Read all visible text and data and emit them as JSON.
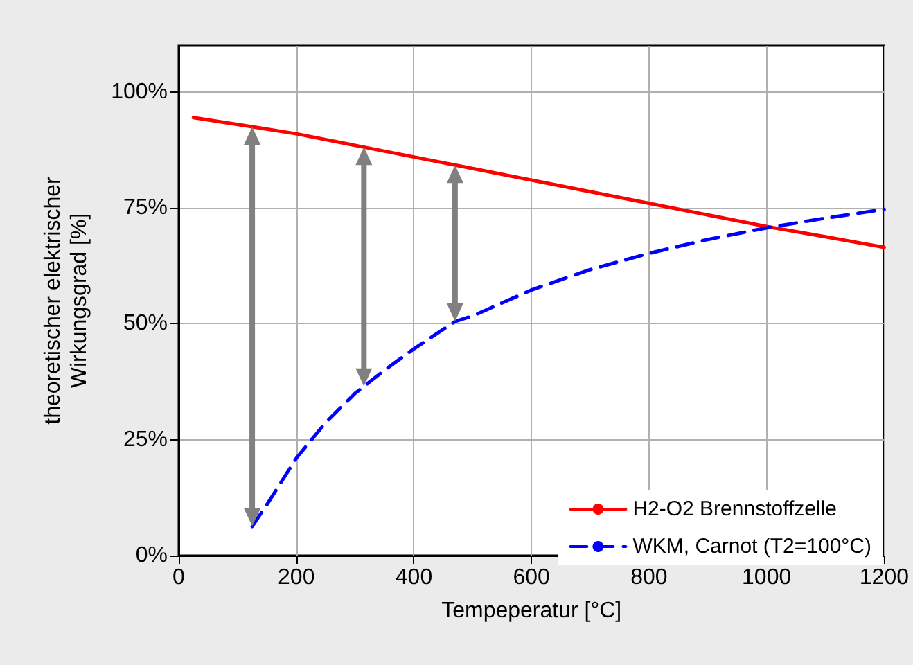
{
  "chart_data": {
    "type": "line",
    "xlabel": "Tempeperatur [°C]",
    "ylabel": "theoretischer elektrischer\nWirkungsgrad [%]",
    "xlim": [
      0,
      1200
    ],
    "xticks": [
      0,
      200,
      400,
      600,
      800,
      1000,
      1200
    ],
    "ylim": [
      0,
      110
    ],
    "yticks": [
      {
        "value": 0,
        "label": "0%"
      },
      {
        "value": 25,
        "label": "25%"
      },
      {
        "value": 50,
        "label": "50%"
      },
      {
        "value": 75,
        "label": "75%"
      },
      {
        "value": 100,
        "label": "100%"
      }
    ],
    "grid": true,
    "legend": "bottom right",
    "marker": "none",
    "series": [
      {
        "name": "H2-O2 Brennstoffzelle",
        "color": "#ff0000",
        "line_style": "solid",
        "x": [
          25,
          125,
          200,
          300,
          400,
          500,
          600,
          700,
          800,
          900,
          1000,
          1100,
          1200
        ],
        "values": [
          94.5,
          92.5,
          91,
          88.5,
          86,
          83.5,
          81,
          78.5,
          76,
          73.5,
          71,
          68.8,
          66.5
        ]
      },
      {
        "name": "WKM, Carnot (T2=100°C)",
        "color": "#0000ff",
        "line_style": "dashed",
        "x": [
          125,
          150,
          200,
          250,
          300,
          350,
          400,
          470,
          500,
          600,
          700,
          800,
          900,
          1000,
          1100,
          1200
        ],
        "values": [
          6.3,
          11,
          21,
          28.7,
          35,
          40,
          44.6,
          50.5,
          51.7,
          57.3,
          61.7,
          65.2,
          68.2,
          70.7,
          72.8,
          74.7
        ]
      }
    ]
  }
}
